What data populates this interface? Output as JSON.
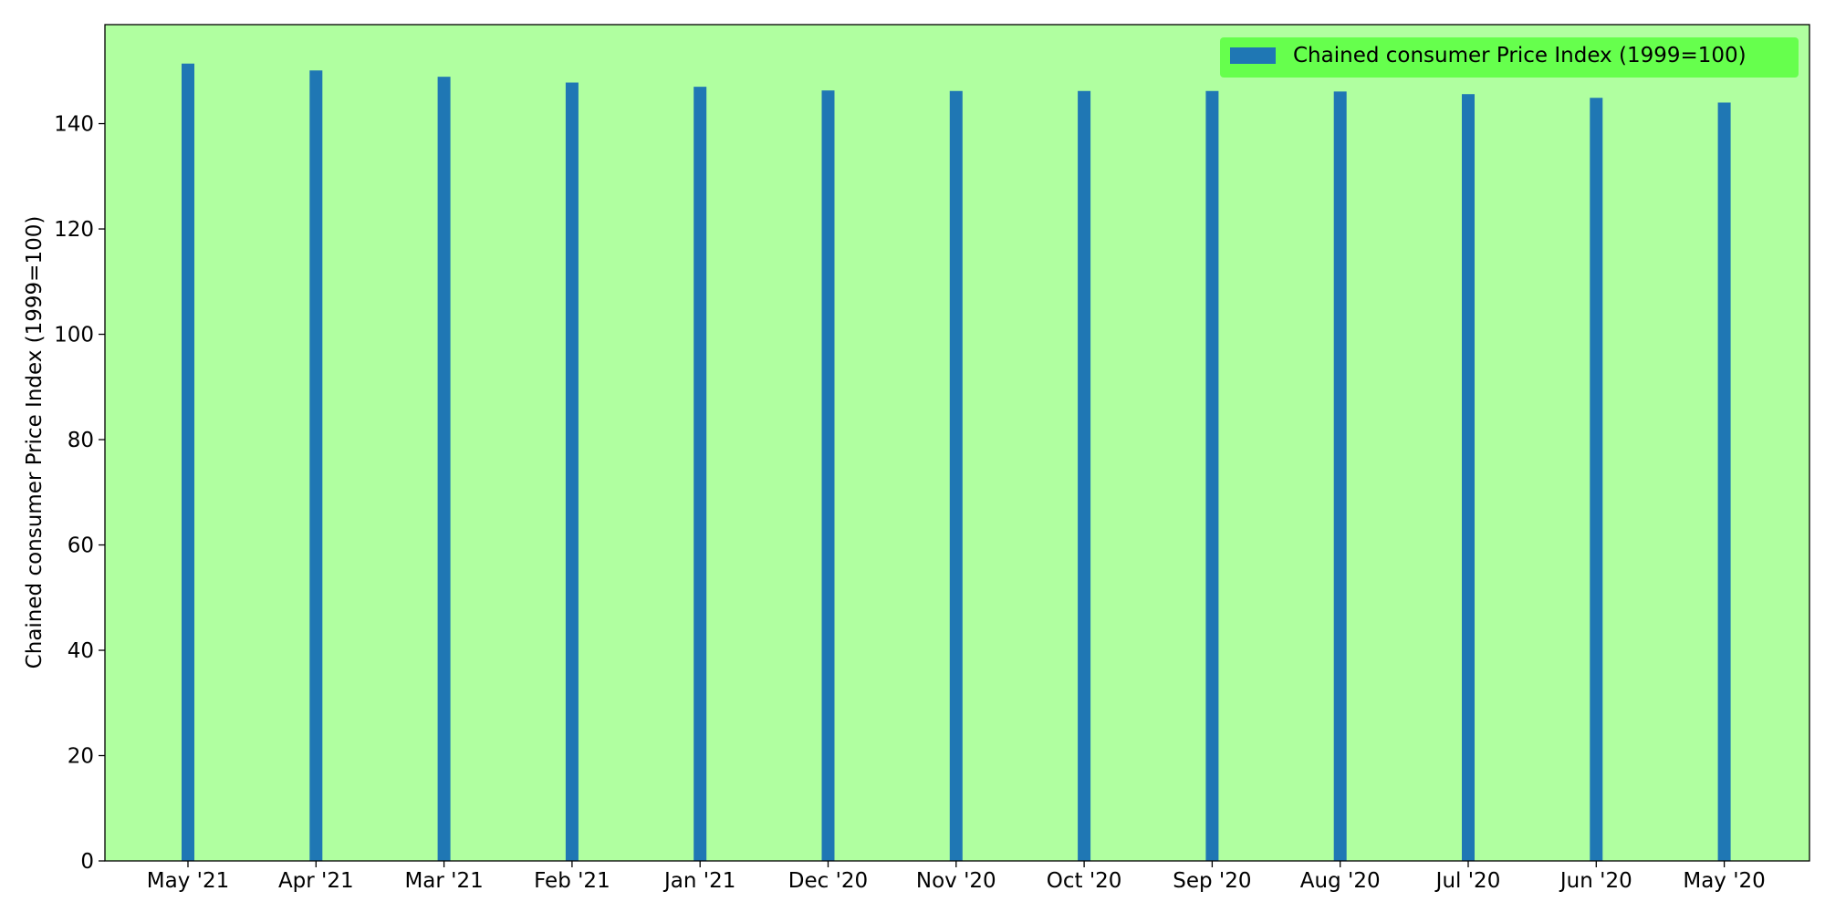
{
  "colors": {
    "plot_background": "#b0ffa0",
    "bar": "#1f77b4",
    "legend_background": "#66ff4d",
    "axis": "#000000"
  },
  "chart_data": {
    "type": "bar",
    "categories": [
      "May '21",
      "Apr '21",
      "Mar '21",
      "Feb '21",
      "Jan '21",
      "Dec '20",
      "Nov '20",
      "Oct '20",
      "Sep '20",
      "Aug '20",
      "Jul '20",
      "Jun '20",
      "May '20"
    ],
    "series": [
      {
        "name": "Chained consumer Price Index (1999=100)",
        "values": [
          151.4,
          150.1,
          148.9,
          147.8,
          147.0,
          146.3,
          146.2,
          146.2,
          146.2,
          146.1,
          145.6,
          144.9,
          144.0
        ]
      }
    ],
    "title": "",
    "xlabel": "",
    "ylabel": "Chained consumer Price Index (1999=100)",
    "ylim": [
      0,
      158.8
    ],
    "yticks": [
      0,
      20,
      40,
      60,
      80,
      100,
      120,
      140
    ],
    "grid": false,
    "legend_position": "top-right"
  }
}
